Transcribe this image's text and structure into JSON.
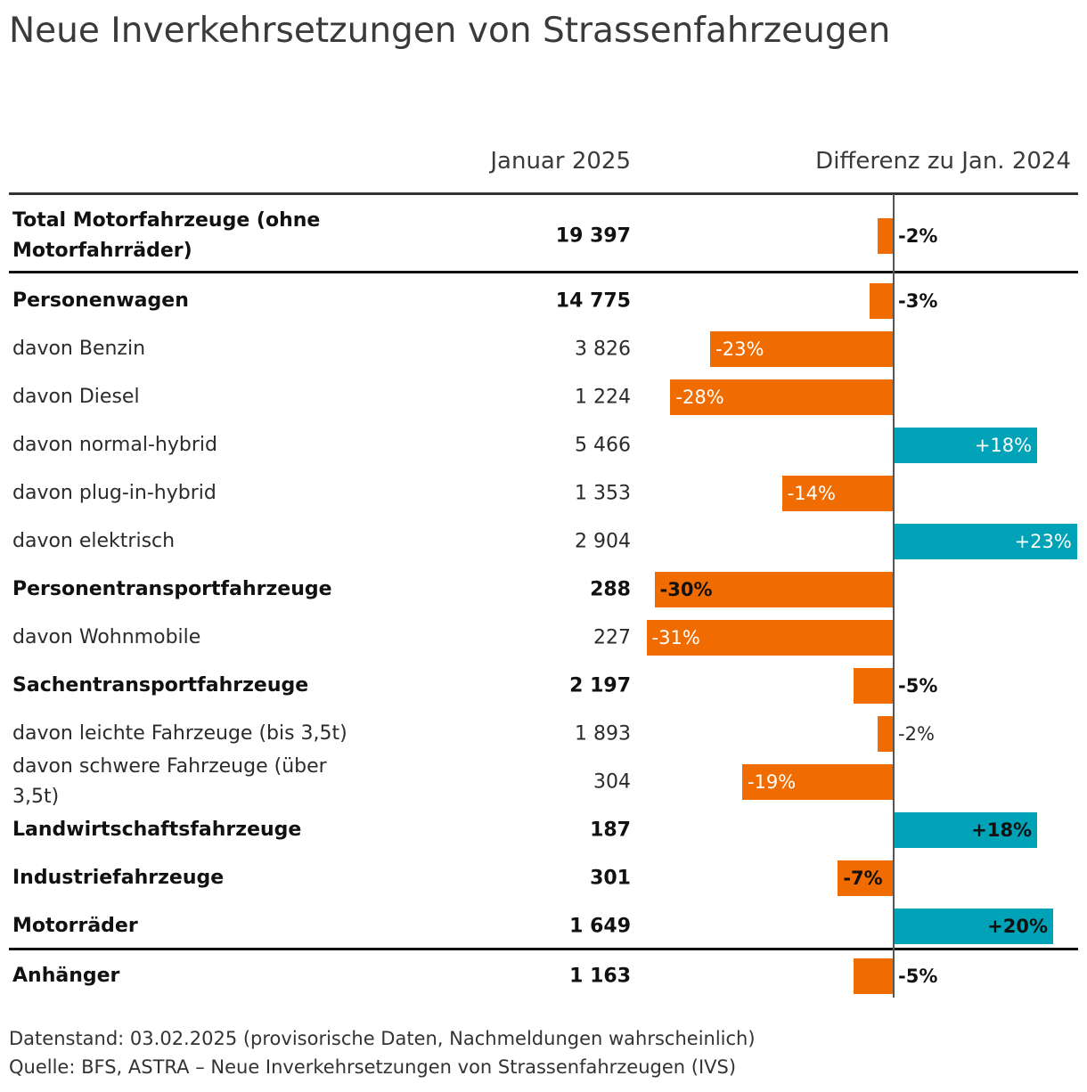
{
  "title": "Neue Inverkehrsetzungen von Strassenfahrzeugen",
  "header": {
    "col_value": "Januar 2025",
    "col_diff": "Differenz zu Jan. 2024"
  },
  "colors": {
    "negative": "#f06c00",
    "positive": "#00a2b8"
  },
  "chart_data": {
    "type": "bar",
    "orientation": "horizontal",
    "title": "Neue Inverkehrsetzungen von Strassenfahrzeugen",
    "value_column": "Januar 2025",
    "diff_column": "Differenz zu Jan. 2024",
    "unit": "%",
    "rows": [
      {
        "label": "Total Motorfahrzeuge (ohne Motorfahrräder)",
        "value": "19 397",
        "diff": -2,
        "diff_label": "-2%",
        "bold": true
      },
      {
        "label": "Personenwagen",
        "value": "14 775",
        "diff": -3,
        "diff_label": "-3%",
        "bold": true
      },
      {
        "label": "davon Benzin",
        "value": "3 826",
        "diff": -23,
        "diff_label": "-23%",
        "bold": false
      },
      {
        "label": "davon Diesel",
        "value": "1 224",
        "diff": -28,
        "diff_label": "-28%",
        "bold": false
      },
      {
        "label": "davon normal-hybrid",
        "value": "5 466",
        "diff": 18,
        "diff_label": "+18%",
        "bold": false
      },
      {
        "label": "davon plug-in-hybrid",
        "value": "1 353",
        "diff": -14,
        "diff_label": "-14%",
        "bold": false
      },
      {
        "label": "davon elektrisch",
        "value": "2 904",
        "diff": 23,
        "diff_label": "+23%",
        "bold": false
      },
      {
        "label": "Personentransportfahrzeuge",
        "value": "288",
        "diff": -30,
        "diff_label": "-30%",
        "bold": true
      },
      {
        "label": "davon Wohnmobile",
        "value": "227",
        "diff": -31,
        "diff_label": "-31%",
        "bold": false
      },
      {
        "label": "Sachentransportfahrzeuge",
        "value": "2 197",
        "diff": -5,
        "diff_label": "-5%",
        "bold": true
      },
      {
        "label": "davon leichte Fahrzeuge (bis 3,5t)",
        "value": "1 893",
        "diff": -2,
        "diff_label": "-2%",
        "bold": false
      },
      {
        "label": "davon schwere Fahrzeuge (über 3,5t)",
        "value": "304",
        "diff": -19,
        "diff_label": "-19%",
        "bold": false
      },
      {
        "label": "Landwirtschaftsfahrzeuge",
        "value": "187",
        "diff": 18,
        "diff_label": "+18%",
        "bold": true
      },
      {
        "label": "Industriefahrzeuge",
        "value": "301",
        "diff": -7,
        "diff_label": "-7%",
        "bold": true
      },
      {
        "label": "Motorräder",
        "value": "1 649",
        "diff": 20,
        "diff_label": "+20%",
        "bold": true
      },
      {
        "label": "Anhänger",
        "value": "1 163",
        "diff": -5,
        "diff_label": "-5%",
        "bold": true
      }
    ]
  },
  "footer": {
    "note": "Datenstand: 03.02.2025 (provisorische Daten, Nachmeldungen wahrscheinlich)",
    "source": "Quelle: BFS, ASTRA – Neue Inverkehrsetzungen von Strassenfahrzeugen (IVS)"
  }
}
